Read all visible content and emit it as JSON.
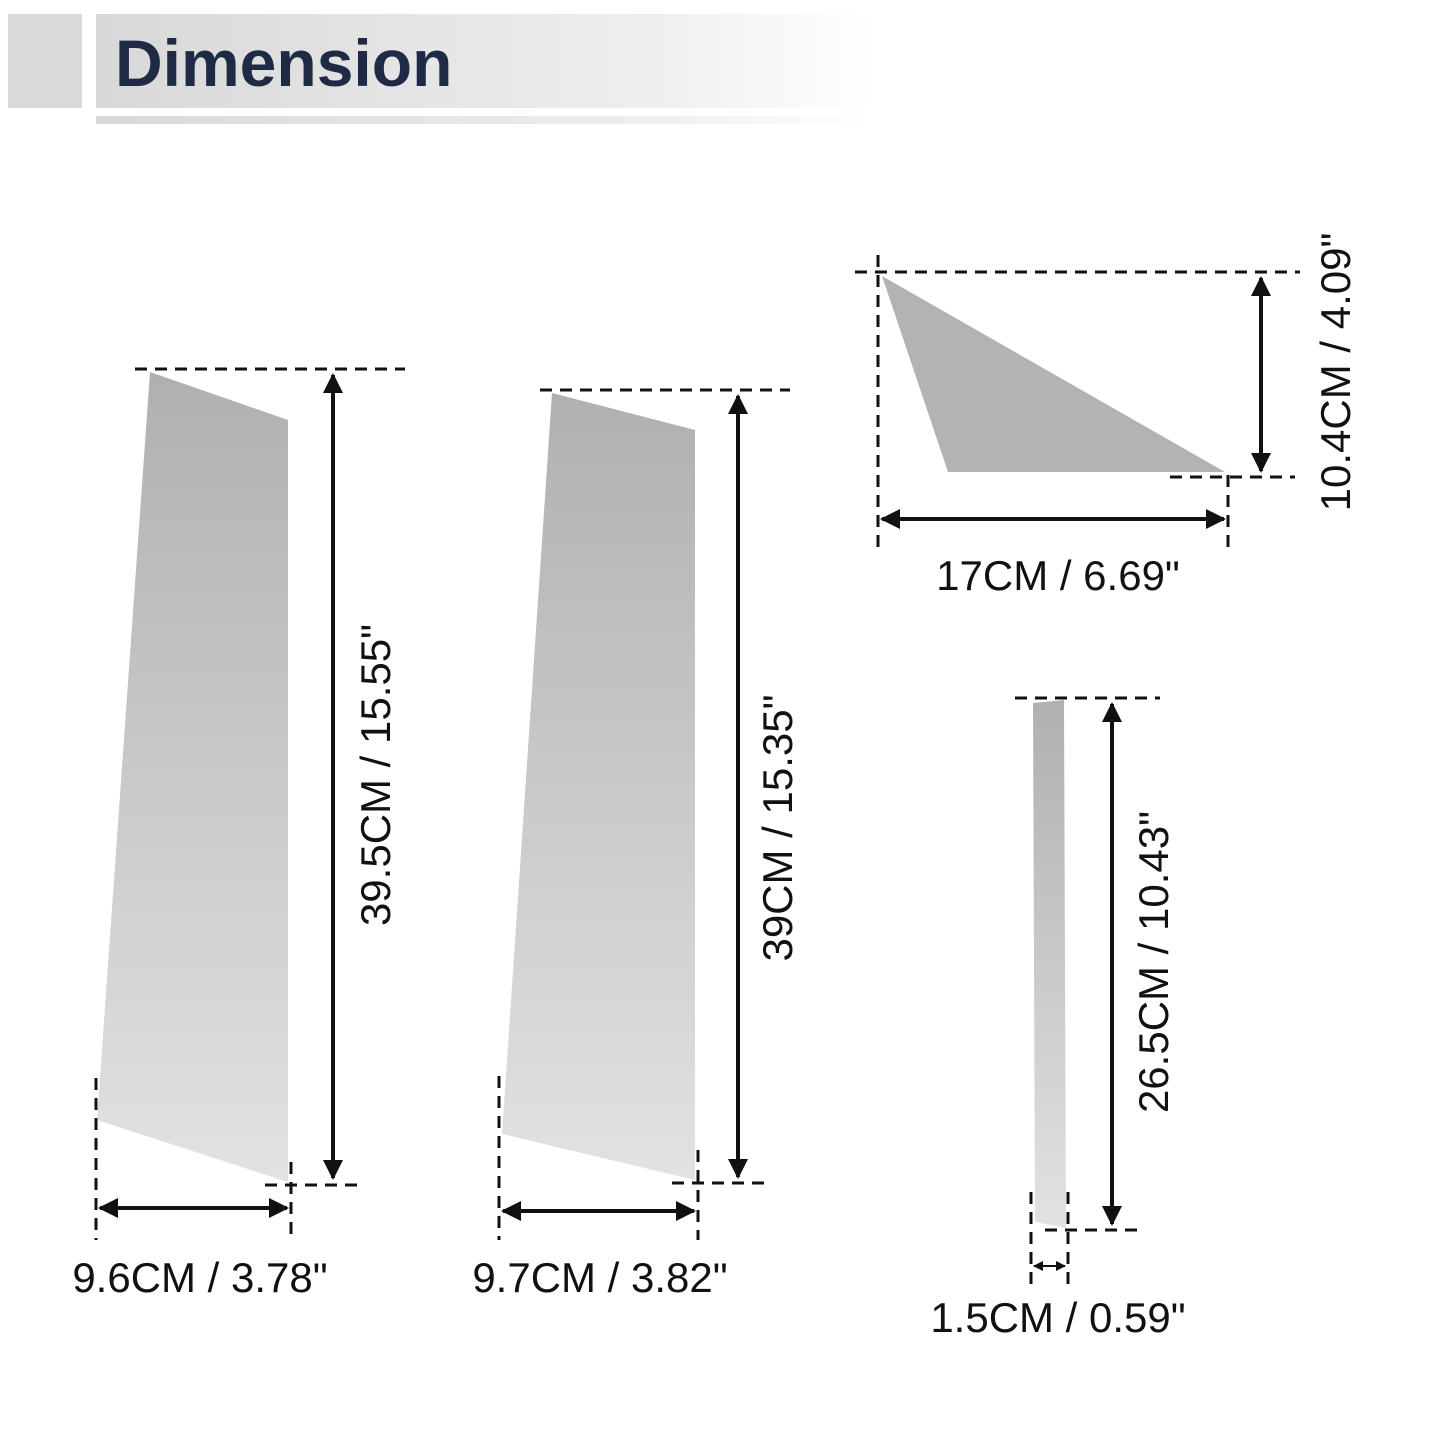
{
  "header": {
    "title": "Dimension"
  },
  "pieces": [
    {
      "height": "39.5CM / 15.55\"",
      "width": "9.6CM / 3.78\""
    },
    {
      "height": "39CM / 15.35\"",
      "width": "9.7CM / 3.82\""
    },
    {
      "height": "10.4CM / 4.09\"",
      "width": "17CM / 6.69\""
    },
    {
      "height": "26.5CM / 10.43\"",
      "width": "1.5CM / 0.59\""
    }
  ]
}
